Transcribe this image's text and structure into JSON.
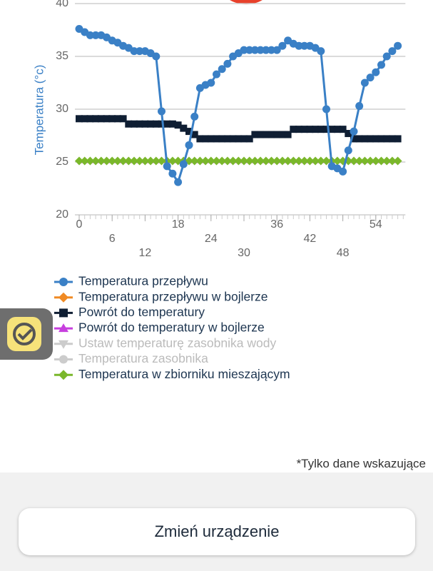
{
  "chart_data": {
    "type": "line",
    "y_label": "Temperatura (°c)",
    "xlim": [
      0,
      59
    ],
    "ylim": [
      20,
      40
    ],
    "xticks": [
      0,
      6,
      12,
      18,
      24,
      30,
      36,
      42,
      48,
      54
    ],
    "yticks": [
      20,
      25,
      30,
      35,
      40
    ],
    "grid": true,
    "x": [
      0,
      1,
      2,
      3,
      4,
      5,
      6,
      7,
      8,
      9,
      10,
      11,
      12,
      13,
      14,
      15,
      16,
      17,
      18,
      19,
      20,
      21,
      22,
      23,
      24,
      25,
      26,
      27,
      28,
      29,
      30,
      31,
      32,
      33,
      34,
      35,
      36,
      37,
      38,
      39,
      40,
      41,
      42,
      43,
      44,
      45,
      46,
      47,
      48,
      49,
      50,
      51,
      52,
      53,
      54,
      55,
      56,
      57,
      58
    ],
    "series": [
      {
        "name": "Temperatura przepływu",
        "color": "#3a80c6",
        "marker": "circle",
        "enabled": true,
        "values": [
          37.6,
          37.3,
          37.0,
          37.0,
          37.0,
          36.8,
          36.5,
          36.3,
          36.0,
          35.8,
          35.5,
          35.5,
          35.5,
          35.3,
          35.0,
          29.8,
          24.6,
          23.9,
          23.1,
          24.8,
          26.6,
          29.3,
          32.0,
          32.3,
          32.5,
          33.3,
          33.8,
          34.3,
          35.0,
          35.3,
          35.6,
          35.6,
          35.6,
          35.6,
          35.6,
          35.6,
          35.6,
          36.0,
          36.5,
          36.2,
          36.0,
          36.0,
          36.0,
          35.8,
          35.5,
          30.0,
          24.6,
          24.4,
          24.1,
          26.1,
          27.9,
          30.3,
          32.5,
          33.0,
          33.5,
          34.2,
          35.0,
          35.5,
          36.0
        ]
      },
      {
        "name": "Temperatura przepływu w bojlerze",
        "color": "#f08a24",
        "marker": "diamond",
        "enabled": true,
        "values": [
          25,
          25,
          25,
          25,
          25,
          25,
          25,
          25,
          25,
          25,
          25,
          25,
          25,
          25,
          25,
          25,
          25,
          25,
          25,
          25,
          25,
          25,
          25,
          25,
          25,
          25,
          25,
          25,
          25,
          25,
          25,
          25,
          25,
          25,
          25,
          25,
          25,
          25,
          25,
          25,
          25,
          25,
          25,
          25,
          25,
          25,
          25,
          25,
          25,
          25,
          25,
          25,
          25,
          25,
          25,
          25,
          25,
          25,
          25
        ]
      },
      {
        "name": "Powrót do temperatury",
        "color": "#0f1e33",
        "marker": "square",
        "enabled": true,
        "values": [
          29.1,
          29.1,
          29.1,
          29.1,
          29.1,
          29.1,
          29.1,
          29.1,
          29.1,
          28.6,
          28.6,
          28.6,
          28.6,
          28.6,
          28.6,
          28.6,
          28.6,
          28.6,
          28.5,
          28.2,
          27.9,
          27.6,
          27.2,
          27.2,
          27.2,
          27.2,
          27.2,
          27.2,
          27.2,
          27.2,
          27.2,
          27.2,
          27.6,
          27.6,
          27.6,
          27.6,
          27.6,
          27.6,
          27.6,
          28.1,
          28.1,
          28.1,
          28.1,
          28.1,
          28.1,
          28.1,
          28.1,
          28.1,
          28.1,
          27.7,
          27.2,
          27.2,
          27.2,
          27.2,
          27.2,
          27.2,
          27.2,
          27.2,
          27.2
        ]
      },
      {
        "name": "Powrót do temperatury w bojlerze",
        "color": "#c73fde",
        "marker": "triangle",
        "enabled": true,
        "values": [
          25,
          25,
          25,
          25,
          25,
          25,
          25,
          25,
          25,
          25,
          25,
          25,
          25,
          25,
          25,
          25,
          25,
          25,
          25,
          25,
          25,
          25,
          25,
          25,
          25,
          25,
          25,
          25,
          25,
          25,
          25,
          25,
          25,
          25,
          25,
          25,
          25,
          25,
          25,
          25,
          25,
          25,
          25,
          25,
          25,
          25,
          25,
          25,
          25,
          25,
          25,
          25,
          25,
          25,
          25,
          25,
          25,
          25,
          25
        ]
      },
      {
        "name": "Ustaw temperaturę zasobnika wody",
        "color": "#cccccc",
        "marker": "triangle-down",
        "enabled": false
      },
      {
        "name": "Temperatura zasobnika",
        "color": "#cccccc",
        "marker": "circle",
        "enabled": false
      },
      {
        "name": "Temperatura w zbiorniku mieszającym",
        "color": "#7ab72b",
        "marker": "diamond",
        "enabled": true,
        "values": [
          25.1,
          25.1,
          25.1,
          25.1,
          25.1,
          25.1,
          25.1,
          25.1,
          25.1,
          25.1,
          25.1,
          25.1,
          25.1,
          25.1,
          25.1,
          25.1,
          25.1,
          25.1,
          25.1,
          25.1,
          25.1,
          25.1,
          25.1,
          25.1,
          25.1,
          25.1,
          25.1,
          25.1,
          25.1,
          25.1,
          25.1,
          25.1,
          25.1,
          25.1,
          25.1,
          25.1,
          25.1,
          25.1,
          25.1,
          25.1,
          25.1,
          25.1,
          25.1,
          25.1,
          25.1,
          25.1,
          25.1,
          25.1,
          25.1,
          25.1,
          25.1,
          25.1,
          25.1,
          25.1,
          25.1,
          25.1,
          25.1,
          25.1,
          25.1
        ]
      }
    ]
  },
  "footnote": "*Tylko dane wskazujące",
  "button": "Zmień urządzenie"
}
